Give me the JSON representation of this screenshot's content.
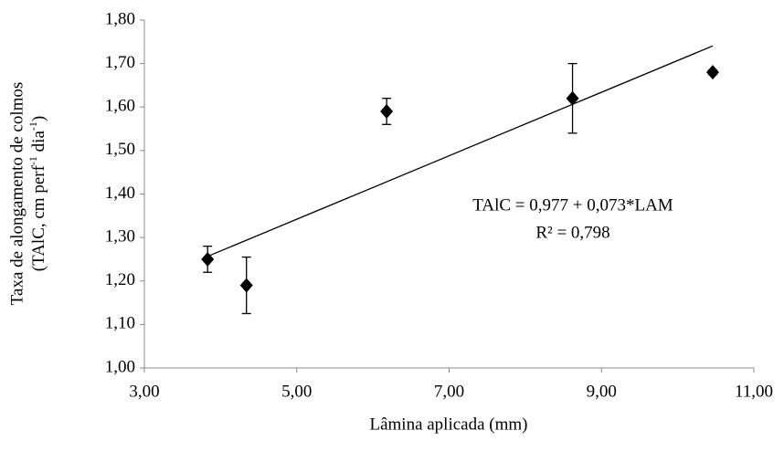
{
  "chart_data": {
    "type": "scatter",
    "xlabel": "Lâmina aplicada (mm)",
    "ylabel": {
      "line1": "Taxa de alongamento de colmos",
      "line2": [
        "(TAlC, cm perf",
        "-1",
        " dia",
        "-1",
        ")"
      ]
    },
    "x": [
      3.83,
      4.34,
      6.18,
      8.62,
      10.46
    ],
    "values": [
      1.25,
      1.19,
      1.59,
      1.62,
      1.68
    ],
    "errors": [
      0.03,
      0.065,
      0.03,
      0.08,
      0.005
    ],
    "color": "#000000",
    "trendline": {
      "intercept": 0.977,
      "slope": 0.073
    },
    "annotations": [
      "TAlC = 0,977 + 0,073*LAM",
      "R² = 0,798"
    ],
    "xlim": [
      3,
      11
    ],
    "xticks": [
      {
        "value": 3,
        "label": "3,00"
      },
      {
        "value": 5,
        "label": "5,00"
      },
      {
        "value": 7,
        "label": "7,00"
      },
      {
        "value": 9,
        "label": "9,00"
      },
      {
        "value": 11,
        "label": "11,00"
      }
    ],
    "ylim": [
      1,
      1.8
    ],
    "yticks": [
      {
        "value": 1,
        "label": "1,00"
      },
      {
        "value": 1.1,
        "label": "1,10"
      },
      {
        "value": 1.2,
        "label": "1,20"
      },
      {
        "value": 1.3,
        "label": "1,30"
      },
      {
        "value": 1.4,
        "label": "1,40"
      },
      {
        "value": 1.5,
        "label": "1,50"
      },
      {
        "value": 1.6,
        "label": "1,60"
      },
      {
        "value": 1.7,
        "label": "1,70"
      },
      {
        "value": 1.8,
        "label": "1,80"
      }
    ],
    "grid": false
  }
}
